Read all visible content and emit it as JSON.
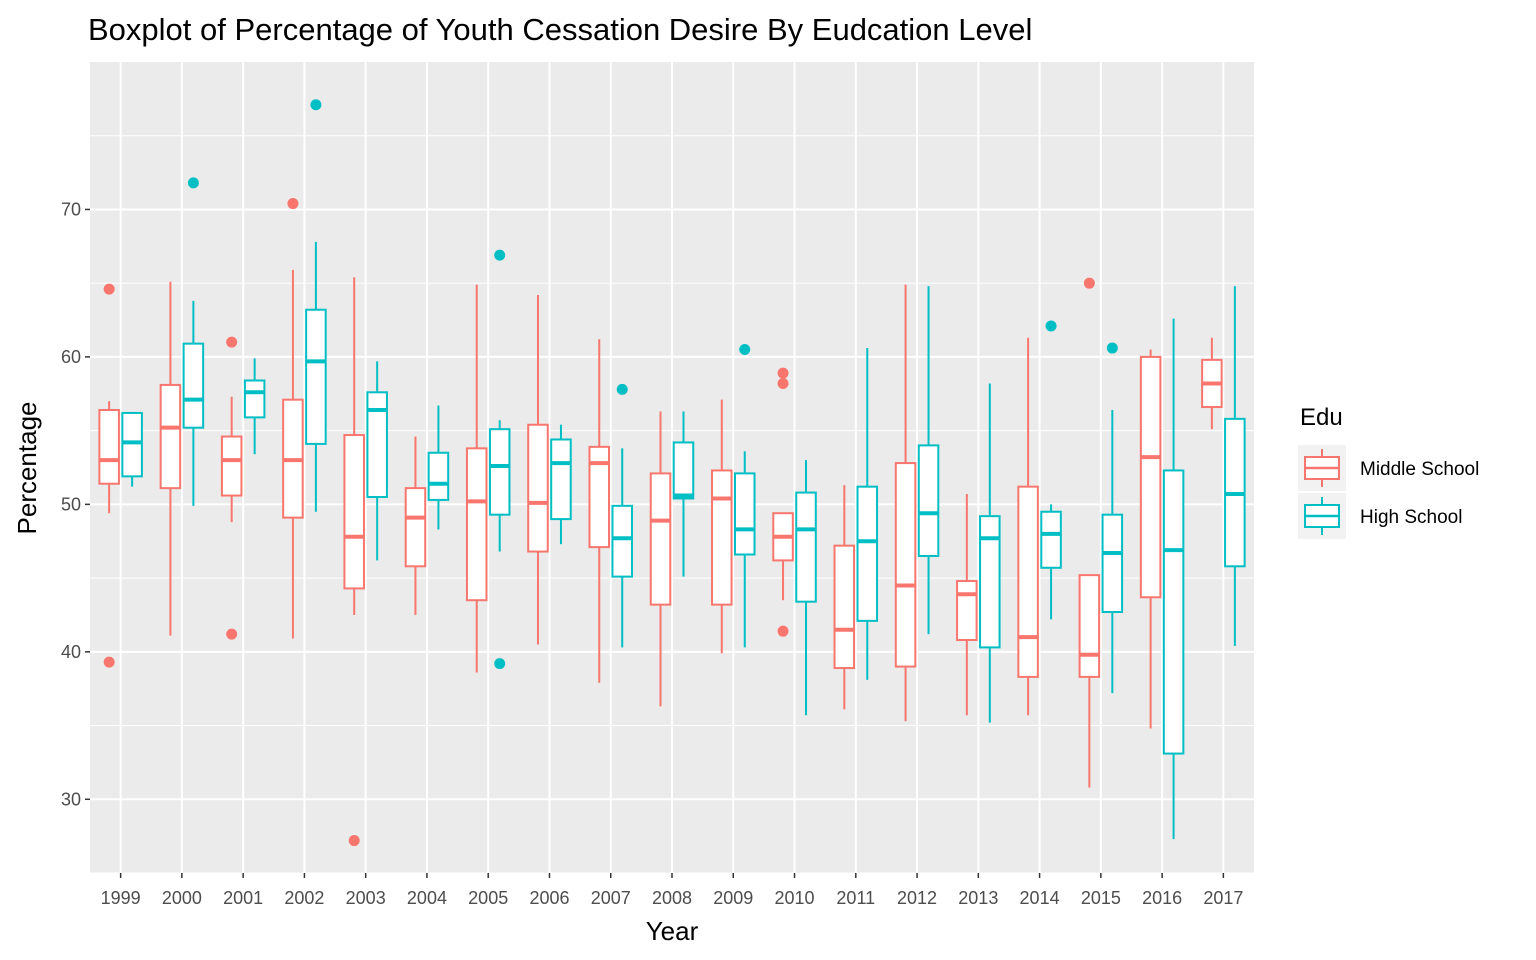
{
  "chart_data": {
    "type": "boxplot",
    "title": "Boxplot of Percentage of Youth Cessation Desire By Eudcation Level",
    "xlabel": "Year",
    "ylabel": "Percentage",
    "ylim": [
      25,
      80
    ],
    "y_ticks": [
      30,
      40,
      50,
      60,
      70
    ],
    "grid": true,
    "legend": {
      "title": "Edu",
      "placement": "right"
    },
    "categories": [
      "1999",
      "2000",
      "2001",
      "2002",
      "2003",
      "2004",
      "2005",
      "2006",
      "2007",
      "2008",
      "2009",
      "2010",
      "2011",
      "2012",
      "2013",
      "2014",
      "2015",
      "2016",
      "2017"
    ],
    "series": [
      {
        "name": "Middle School",
        "color": "#F8766D",
        "boxes": [
          {
            "min": 49.4,
            "q1": 51.4,
            "median": 53.0,
            "q3": 56.4,
            "max": 57.0,
            "outliers": [
              64.6,
              39.3
            ]
          },
          {
            "min": 41.1,
            "q1": 51.1,
            "median": 55.2,
            "q3": 58.1,
            "max": 65.1,
            "outliers": []
          },
          {
            "min": 48.8,
            "q1": 50.6,
            "median": 53.0,
            "q3": 54.6,
            "max": 57.3,
            "outliers": [
              61.0,
              41.2
            ]
          },
          {
            "min": 40.9,
            "q1": 49.1,
            "median": 53.0,
            "q3": 57.1,
            "max": 65.9,
            "outliers": [
              70.4
            ]
          },
          {
            "min": 42.5,
            "q1": 44.3,
            "median": 47.8,
            "q3": 54.7,
            "max": 65.4,
            "outliers": [
              27.2
            ]
          },
          {
            "min": 42.5,
            "q1": 45.8,
            "median": 49.1,
            "q3": 51.1,
            "max": 54.6,
            "outliers": []
          },
          {
            "min": 38.6,
            "q1": 43.5,
            "median": 50.2,
            "q3": 53.8,
            "max": 64.9,
            "outliers": []
          },
          {
            "min": 40.5,
            "q1": 46.8,
            "median": 50.1,
            "q3": 55.4,
            "max": 64.2,
            "outliers": []
          },
          {
            "min": 37.9,
            "q1": 47.1,
            "median": 52.8,
            "q3": 53.9,
            "max": 61.2,
            "outliers": []
          },
          {
            "min": 36.3,
            "q1": 43.2,
            "median": 48.9,
            "q3": 52.1,
            "max": 56.3,
            "outliers": []
          },
          {
            "min": 39.9,
            "q1": 43.2,
            "median": 50.4,
            "q3": 52.3,
            "max": 57.1,
            "outliers": []
          },
          {
            "min": 43.5,
            "q1": 46.2,
            "median": 47.8,
            "q3": 49.4,
            "max": 49.4,
            "outliers": [
              58.9,
              58.2,
              41.4
            ]
          },
          {
            "min": 36.1,
            "q1": 38.9,
            "median": 41.5,
            "q3": 47.2,
            "max": 51.3,
            "outliers": []
          },
          {
            "min": 35.3,
            "q1": 39.0,
            "median": 44.5,
            "q3": 52.8,
            "max": 64.9,
            "outliers": []
          },
          {
            "min": 35.7,
            "q1": 40.8,
            "median": 43.9,
            "q3": 44.8,
            "max": 50.7,
            "outliers": []
          },
          {
            "min": 35.7,
            "q1": 38.3,
            "median": 41.0,
            "q3": 51.2,
            "max": 61.3,
            "outliers": []
          },
          {
            "min": 30.8,
            "q1": 38.3,
            "median": 39.8,
            "q3": 45.2,
            "max": 45.2,
            "outliers": [
              65.0
            ]
          },
          {
            "min": 34.8,
            "q1": 43.7,
            "median": 53.2,
            "q3": 60.0,
            "max": 60.5,
            "outliers": []
          },
          {
            "min": 55.1,
            "q1": 56.6,
            "median": 58.2,
            "q3": 59.8,
            "max": 61.3,
            "outliers": []
          }
        ]
      },
      {
        "name": "High School",
        "color": "#00BFC4",
        "boxes": [
          {
            "min": 51.2,
            "q1": 51.9,
            "median": 54.2,
            "q3": 56.2,
            "max": 56.2,
            "outliers": []
          },
          {
            "min": 49.9,
            "q1": 55.2,
            "median": 57.1,
            "q3": 60.9,
            "max": 63.8,
            "outliers": [
              71.8
            ]
          },
          {
            "min": 53.4,
            "q1": 55.9,
            "median": 57.6,
            "q3": 58.4,
            "max": 59.9,
            "outliers": []
          },
          {
            "min": 49.5,
            "q1": 54.1,
            "median": 59.7,
            "q3": 63.2,
            "max": 67.8,
            "outliers": [
              77.1
            ]
          },
          {
            "min": 46.2,
            "q1": 50.5,
            "median": 56.4,
            "q3": 57.6,
            "max": 59.7,
            "outliers": []
          },
          {
            "min": 48.3,
            "q1": 50.3,
            "median": 51.4,
            "q3": 53.5,
            "max": 56.7,
            "outliers": []
          },
          {
            "min": 46.8,
            "q1": 49.3,
            "median": 52.6,
            "q3": 55.1,
            "max": 55.7,
            "outliers": [
              66.9,
              39.2
            ]
          },
          {
            "min": 47.3,
            "q1": 49.0,
            "median": 52.8,
            "q3": 54.4,
            "max": 55.4,
            "outliers": []
          },
          {
            "min": 40.3,
            "q1": 45.1,
            "median": 47.7,
            "q3": 49.9,
            "max": 53.8,
            "outliers": [
              57.8
            ]
          },
          {
            "min": 45.1,
            "q1": 50.4,
            "median": 50.6,
            "q3": 54.2,
            "max": 56.3,
            "outliers": []
          },
          {
            "min": 40.3,
            "q1": 46.6,
            "median": 48.3,
            "q3": 52.1,
            "max": 53.6,
            "outliers": [
              60.5
            ]
          },
          {
            "min": 35.7,
            "q1": 43.4,
            "median": 48.3,
            "q3": 50.8,
            "max": 53.0,
            "outliers": []
          },
          {
            "min": 38.1,
            "q1": 42.1,
            "median": 47.5,
            "q3": 51.2,
            "max": 60.6,
            "outliers": []
          },
          {
            "min": 41.2,
            "q1": 46.5,
            "median": 49.4,
            "q3": 54.0,
            "max": 64.8,
            "outliers": []
          },
          {
            "min": 35.2,
            "q1": 40.3,
            "median": 47.7,
            "q3": 49.2,
            "max": 58.2,
            "outliers": []
          },
          {
            "min": 42.2,
            "q1": 45.7,
            "median": 48.0,
            "q3": 49.5,
            "max": 50.0,
            "outliers": [
              62.1
            ]
          },
          {
            "min": 37.2,
            "q1": 42.7,
            "median": 46.7,
            "q3": 49.3,
            "max": 56.4,
            "outliers": [
              60.6
            ]
          },
          {
            "min": 27.3,
            "q1": 33.1,
            "median": 46.9,
            "q3": 52.3,
            "max": 62.6,
            "outliers": []
          },
          {
            "min": 40.4,
            "q1": 45.8,
            "median": 50.7,
            "q3": 55.8,
            "max": 64.8,
            "outliers": []
          }
        ]
      }
    ]
  }
}
